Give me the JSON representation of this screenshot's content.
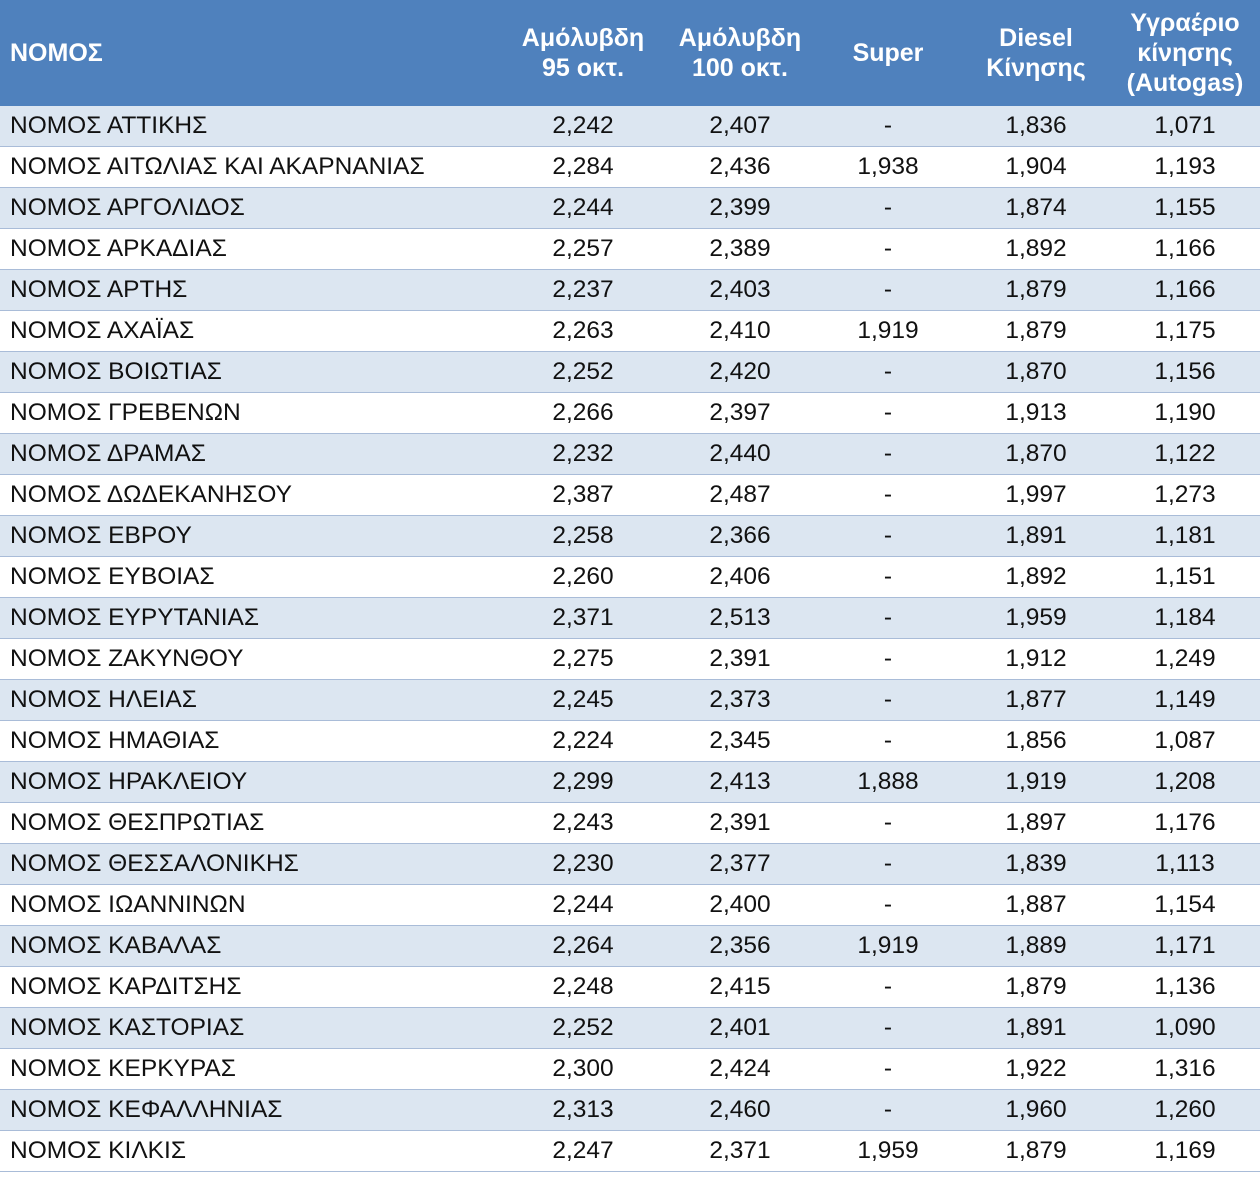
{
  "table": {
    "headers": [
      {
        "lines": [
          "ΝΟΜΟΣ"
        ]
      },
      {
        "lines": [
          "Αμόλυβδη",
          "95 οκτ."
        ]
      },
      {
        "lines": [
          "Αμόλυβδη",
          "100 οκτ."
        ]
      },
      {
        "lines": [
          "Super"
        ]
      },
      {
        "lines": [
          "Diesel",
          "Κίνησης"
        ]
      },
      {
        "lines": [
          "Υγραέριο",
          "κίνησης",
          "(Autogas)"
        ]
      }
    ],
    "rows": [
      [
        "ΝΟΜΟΣ ΑΤΤΙΚΗΣ",
        "2,242",
        "2,407",
        "-",
        "1,836",
        "1,071"
      ],
      [
        "ΝΟΜΟΣ ΑΙΤΩΛΙΑΣ ΚΑΙ ΑΚΑΡΝΑΝΙΑΣ",
        "2,284",
        "2,436",
        "1,938",
        "1,904",
        "1,193"
      ],
      [
        "ΝΟΜΟΣ ΑΡΓΟΛΙΔΟΣ",
        "2,244",
        "2,399",
        "-",
        "1,874",
        "1,155"
      ],
      [
        "ΝΟΜΟΣ ΑΡΚΑΔΙΑΣ",
        "2,257",
        "2,389",
        "-",
        "1,892",
        "1,166"
      ],
      [
        "ΝΟΜΟΣ ΑΡΤΗΣ",
        "2,237",
        "2,403",
        "-",
        "1,879",
        "1,166"
      ],
      [
        "ΝΟΜΟΣ ΑΧΑΪΑΣ",
        "2,263",
        "2,410",
        "1,919",
        "1,879",
        "1,175"
      ],
      [
        "ΝΟΜΟΣ ΒΟΙΩΤΙΑΣ",
        "2,252",
        "2,420",
        "-",
        "1,870",
        "1,156"
      ],
      [
        "ΝΟΜΟΣ ΓΡΕΒΕΝΩΝ",
        "2,266",
        "2,397",
        "-",
        "1,913",
        "1,190"
      ],
      [
        "ΝΟΜΟΣ ΔΡΑΜΑΣ",
        "2,232",
        "2,440",
        "-",
        "1,870",
        "1,122"
      ],
      [
        "ΝΟΜΟΣ ΔΩΔΕΚΑΝΗΣΟΥ",
        "2,387",
        "2,487",
        "-",
        "1,997",
        "1,273"
      ],
      [
        "ΝΟΜΟΣ ΕΒΡΟΥ",
        "2,258",
        "2,366",
        "-",
        "1,891",
        "1,181"
      ],
      [
        "ΝΟΜΟΣ ΕΥΒΟΙΑΣ",
        "2,260",
        "2,406",
        "-",
        "1,892",
        "1,151"
      ],
      [
        "ΝΟΜΟΣ ΕΥΡΥΤΑΝΙΑΣ",
        "2,371",
        "2,513",
        "-",
        "1,959",
        "1,184"
      ],
      [
        "ΝΟΜΟΣ ΖΑΚΥΝΘΟΥ",
        "2,275",
        "2,391",
        "-",
        "1,912",
        "1,249"
      ],
      [
        "ΝΟΜΟΣ ΗΛΕΙΑΣ",
        "2,245",
        "2,373",
        "-",
        "1,877",
        "1,149"
      ],
      [
        "ΝΟΜΟΣ ΗΜΑΘΙΑΣ",
        "2,224",
        "2,345",
        "-",
        "1,856",
        "1,087"
      ],
      [
        "ΝΟΜΟΣ ΗΡΑΚΛΕΙΟΥ",
        "2,299",
        "2,413",
        "1,888",
        "1,919",
        "1,208"
      ],
      [
        "ΝΟΜΟΣ ΘΕΣΠΡΩΤΙΑΣ",
        "2,243",
        "2,391",
        "-",
        "1,897",
        "1,176"
      ],
      [
        "ΝΟΜΟΣ ΘΕΣΣΑΛΟΝΙΚΗΣ",
        "2,230",
        "2,377",
        "-",
        "1,839",
        "1,113"
      ],
      [
        "ΝΟΜΟΣ ΙΩΑΝΝΙΝΩΝ",
        "2,244",
        "2,400",
        "-",
        "1,887",
        "1,154"
      ],
      [
        "ΝΟΜΟΣ ΚΑΒΑΛΑΣ",
        "2,264",
        "2,356",
        "1,919",
        "1,889",
        "1,171"
      ],
      [
        "ΝΟΜΟΣ ΚΑΡΔΙΤΣΗΣ",
        "2,248",
        "2,415",
        "-",
        "1,879",
        "1,136"
      ],
      [
        "ΝΟΜΟΣ ΚΑΣΤΟΡΙΑΣ",
        "2,252",
        "2,401",
        "-",
        "1,891",
        "1,090"
      ],
      [
        "ΝΟΜΟΣ ΚΕΡΚΥΡΑΣ",
        "2,300",
        "2,424",
        "-",
        "1,922",
        "1,316"
      ],
      [
        "ΝΟΜΟΣ ΚΕΦΑΛΛΗΝΙΑΣ",
        "2,313",
        "2,460",
        "-",
        "1,960",
        "1,260"
      ],
      [
        "ΝΟΜΟΣ ΚΙΛΚΙΣ",
        "2,247",
        "2,371",
        "1,959",
        "1,879",
        "1,169"
      ]
    ],
    "colors": {
      "header_bg": "#4f81bd",
      "header_text": "#ffffff",
      "row_odd_bg": "#dce6f1",
      "row_even_bg": "#ffffff",
      "row_border": "#a9bcd8"
    }
  }
}
